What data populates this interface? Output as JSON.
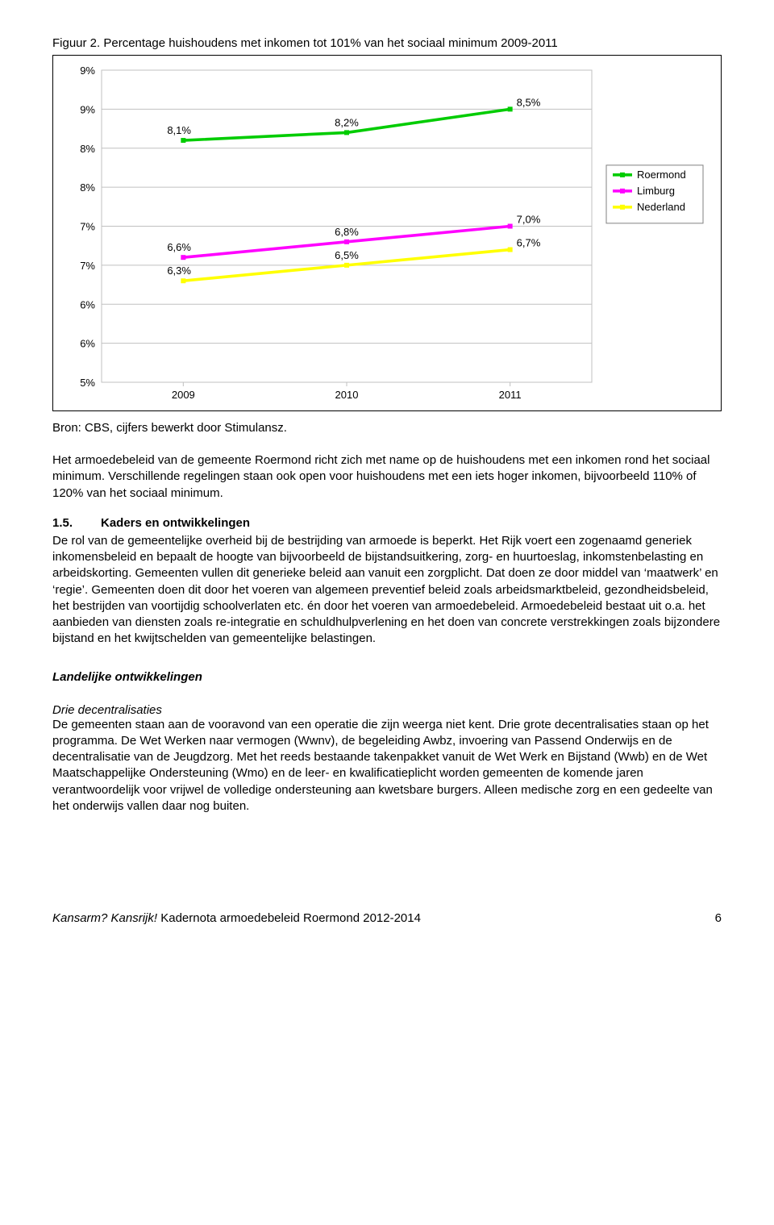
{
  "figure": {
    "title": "Figuur 2. Percentage huishoudens met inkomen tot 101% van het sociaal minimum 2009-2011",
    "source": "Bron: CBS, cijfers bewerkt door Stimulansz.",
    "chart": {
      "type": "line",
      "background": "#ffffff",
      "grid_color": "#c0c0c0",
      "axis_fontsize": 13,
      "x_labels": [
        "2009",
        "2010",
        "2011"
      ],
      "y_min": 5,
      "y_max": 9,
      "y_tick_step": 0.5,
      "y_tick_format_major": "%d%%",
      "line_width": 3.6,
      "series": [
        {
          "name": "Roermond",
          "color": "#00cc00",
          "values": [
            8.1,
            8.2,
            8.5
          ],
          "labels": [
            "8,1%",
            "8,2%",
            "8,5%"
          ]
        },
        {
          "name": "Limburg",
          "color": "#ff00ff",
          "values": [
            6.6,
            6.8,
            7.0
          ],
          "labels": [
            "6,6%",
            "6,8%",
            "7,0%"
          ]
        },
        {
          "name": "Nederland",
          "color": "#ffff00",
          "values": [
            6.3,
            6.5,
            6.7
          ],
          "labels": [
            "6,3%",
            "6,5%",
            "6,7%"
          ]
        }
      ],
      "legend": {
        "items": [
          "Roermond",
          "Limburg",
          "Nederland"
        ],
        "border_color": "#808080",
        "font_size": 13
      }
    }
  },
  "body": {
    "p1": "Het armoedebeleid van de gemeente Roermond richt zich met name op de huishoudens met een inkomen rond het sociaal minimum. Verschillende regelingen staan ook open voor huishoudens met een iets hoger inkomen, bijvoorbeeld 110% of 120% van het sociaal minimum.",
    "s15_num": "1.5.",
    "s15_title": "Kaders en ontwikkelingen",
    "p2": "De rol van de gemeentelijke overheid bij de bestrijding van armoede is beperkt. Het Rijk voert een zogenaamd generiek inkomensbeleid en bepaalt de hoogte van bijvoorbeeld de bijstandsuitkering, zorg- en huurtoeslag, inkomstenbelasting en arbeidskorting. Gemeenten vullen dit generieke beleid aan vanuit een zorgplicht. Dat doen ze door middel van ‘maatwerk’ en ‘regie’. Gemeenten doen dit door het voeren van algemeen preventief beleid zoals arbeidsmarktbeleid, gezondheidsbeleid, het bestrijden van voortijdig schoolverlaten etc. én door het voeren van armoedebeleid. Armoedebeleid bestaat uit o.a. het aanbieden van diensten zoals re-integratie en schuldhulpverlening en het doen van concrete verstrekkingen zoals bijzondere bijstand en het kwijtschelden van gemeentelijke belastingen.",
    "h_landelijk": "Landelijke ontwikkelingen",
    "h_drie": "Drie decentralisaties",
    "p3": "De gemeenten staan aan de vooravond van een operatie die zijn weerga niet kent. Drie grote decentralisaties staan op het programma. De Wet Werken naar vermogen (Wwnv), de begeleiding Awbz, invoering van Passend Onderwijs en de decentralisatie van de Jeugdzorg. Met het reeds bestaande takenpakket vanuit de Wet Werk en Bijstand (Wwb) en de Wet Maatschappelijke Ondersteuning (Wmo) en de leer- en kwalificatieplicht worden gemeenten de komende jaren verantwoordelijk voor vrijwel de volledige ondersteuning aan kwetsbare burgers. Alleen medische zorg en een gedeelte van het onderwijs vallen daar nog buiten."
  },
  "footer": {
    "left_italic": "Kansarm? Kansrijk!",
    "left_rest": " Kadernota armoedebeleid Roermond 2012-2014",
    "page": "6"
  }
}
